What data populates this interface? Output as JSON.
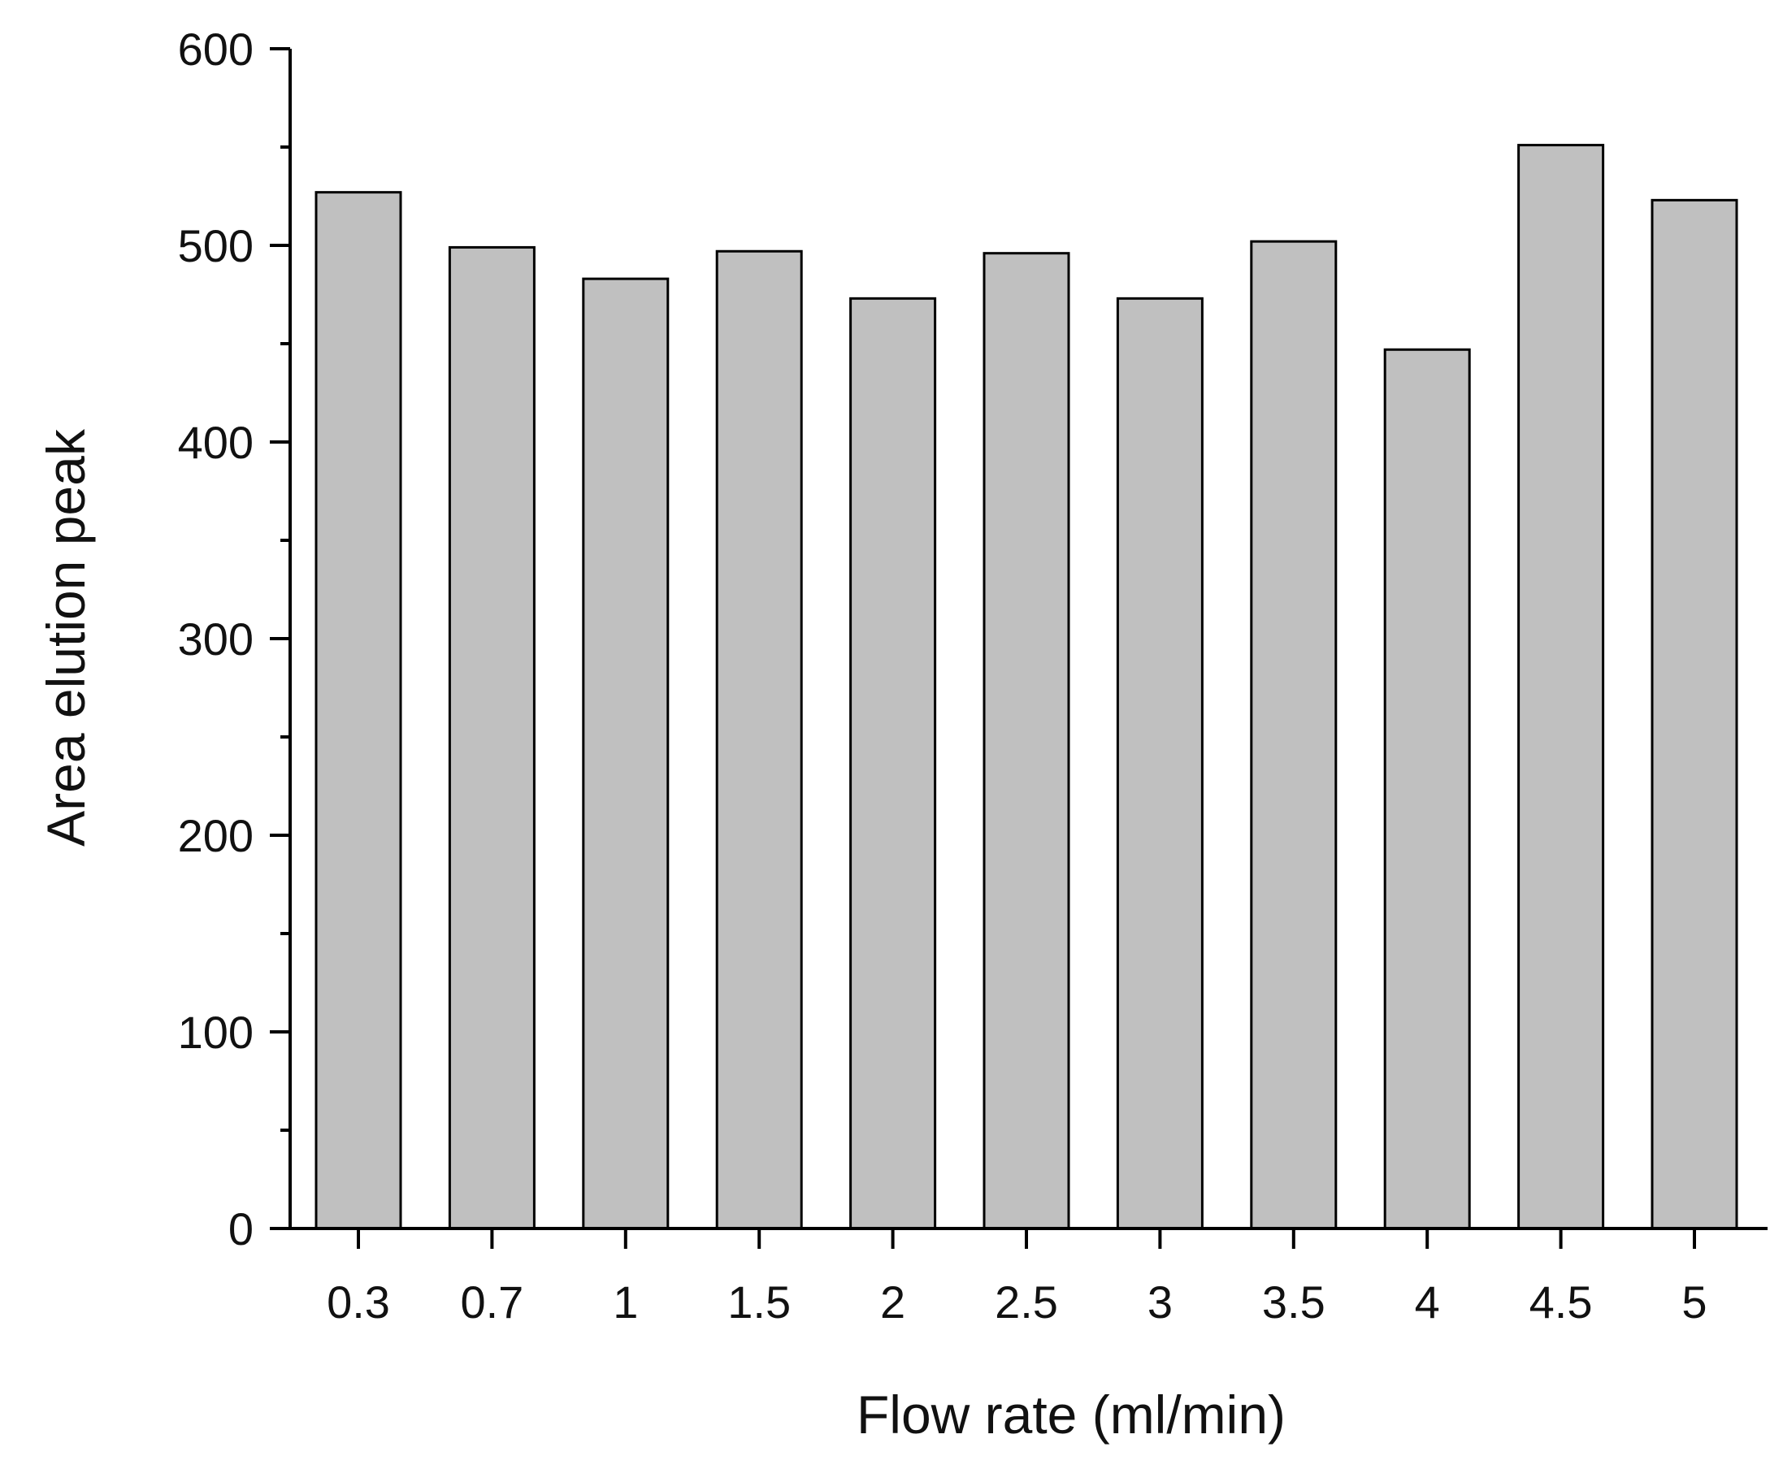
{
  "chart_data": {
    "type": "bar",
    "title": "",
    "xlabel": "Flow rate (ml/min)",
    "ylabel": "Area elution peak",
    "categories": [
      "0.3",
      "0.7",
      "1",
      "1.5",
      "2",
      "2.5",
      "3",
      "3.5",
      "4",
      "4.5",
      "5"
    ],
    "values": [
      527,
      499,
      483,
      497,
      473,
      496,
      473,
      502,
      447,
      551,
      523
    ],
    "ylim": [
      0,
      600
    ],
    "yticks": [
      "0",
      "100",
      "200",
      "300",
      "400",
      "500",
      "600"
    ],
    "grid": false,
    "legend": "none",
    "bar_color": "#c0c0c0",
    "edge_color": "#000000"
  }
}
